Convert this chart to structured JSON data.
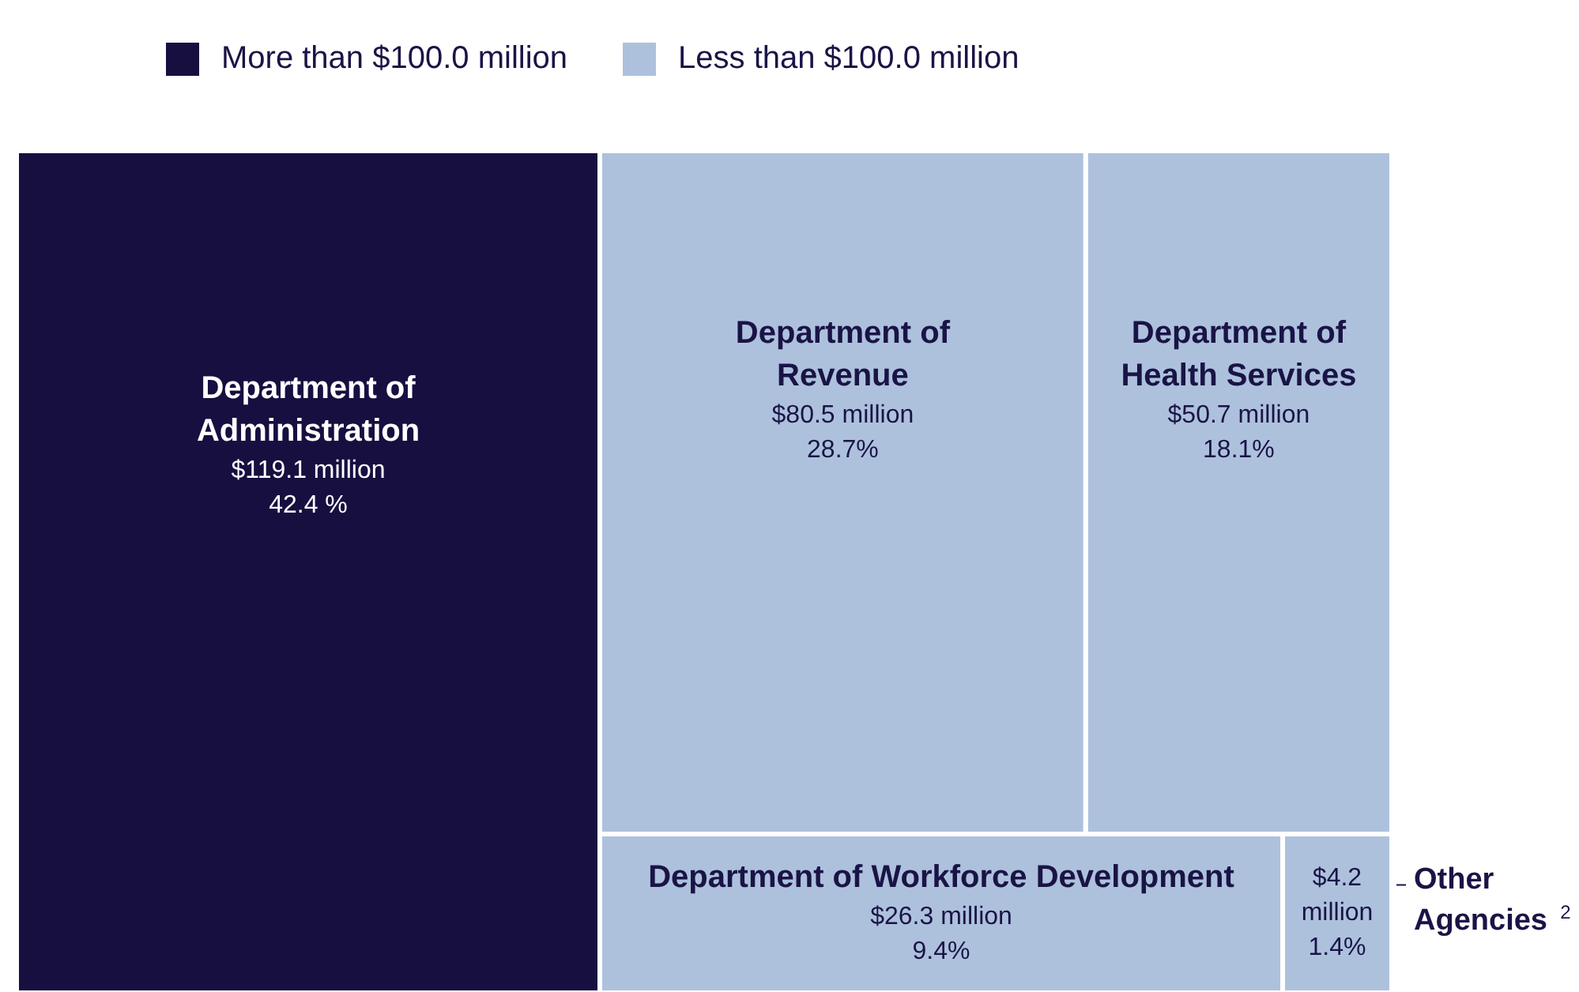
{
  "chart_data": {
    "type": "other",
    "categories": [
      "Department of Administration",
      "Department of Revenue",
      "Department of Health Services",
      "Department of Workforce Development",
      "Other Agencies$^{2}$"
    ],
    "series": [
      {
        "name": "More than $100.0 million",
        "color": "#170f40",
        "values": [
          119.1,
          null,
          null,
          null,
          null
        ],
        "value_labels": [
          "$119.1 million",
          null,
          null,
          null,
          null
        ]
      },
      {
        "name": "Less than $100.0 million",
        "color": "#adc1dd",
        "values": [
          null,
          80.5,
          50.7,
          26.3,
          4.2
        ],
        "value_labels": [
          null,
          "$80.5 million",
          "$50.7 million",
          "$26.3 million",
          "$4.2 million"
        ]
      }
    ],
    "annotations": [
      "42.4 %",
      "28.7%",
      "18.1%",
      "9.4%",
      "1.4%"
    ],
    "legend": "top left"
  }
}
